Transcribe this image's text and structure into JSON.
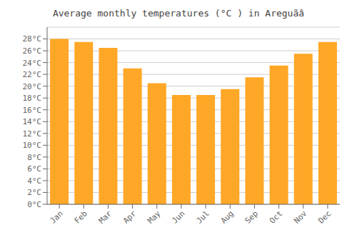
{
  "chart_data": {
    "type": "bar",
    "title": "Average monthly temperatures (°C ) in Areguãâ",
    "categories": [
      "Jan",
      "Feb",
      "Mar",
      "Apr",
      "May",
      "Jun",
      "Jul",
      "Aug",
      "Sep",
      "Oct",
      "Nov",
      "Dec"
    ],
    "values": [
      28.0,
      27.5,
      26.5,
      23.0,
      20.5,
      18.5,
      18.5,
      19.5,
      21.5,
      23.5,
      25.5,
      27.5
    ],
    "color": "#FFA726",
    "ylim": [
      0,
      30
    ],
    "yticks": [
      {
        "value": 0,
        "label": "0°C"
      },
      {
        "value": 2,
        "label": "2°C"
      },
      {
        "value": 4,
        "label": "4°C"
      },
      {
        "value": 6,
        "label": "6°C"
      },
      {
        "value": 8,
        "label": "8°C"
      },
      {
        "value": 10,
        "label": "10°C"
      },
      {
        "value": 12,
        "label": "12°C"
      },
      {
        "value": 14,
        "label": "14°C"
      },
      {
        "value": 16,
        "label": "16°C"
      },
      {
        "value": 18,
        "label": "18°C"
      },
      {
        "value": 20,
        "label": "20°C"
      },
      {
        "value": 22,
        "label": "22°C"
      },
      {
        "value": 24,
        "label": "24°C"
      },
      {
        "value": 26,
        "label": "26°C"
      },
      {
        "value": 28,
        "label": "28°C"
      }
    ],
    "grid": true
  }
}
